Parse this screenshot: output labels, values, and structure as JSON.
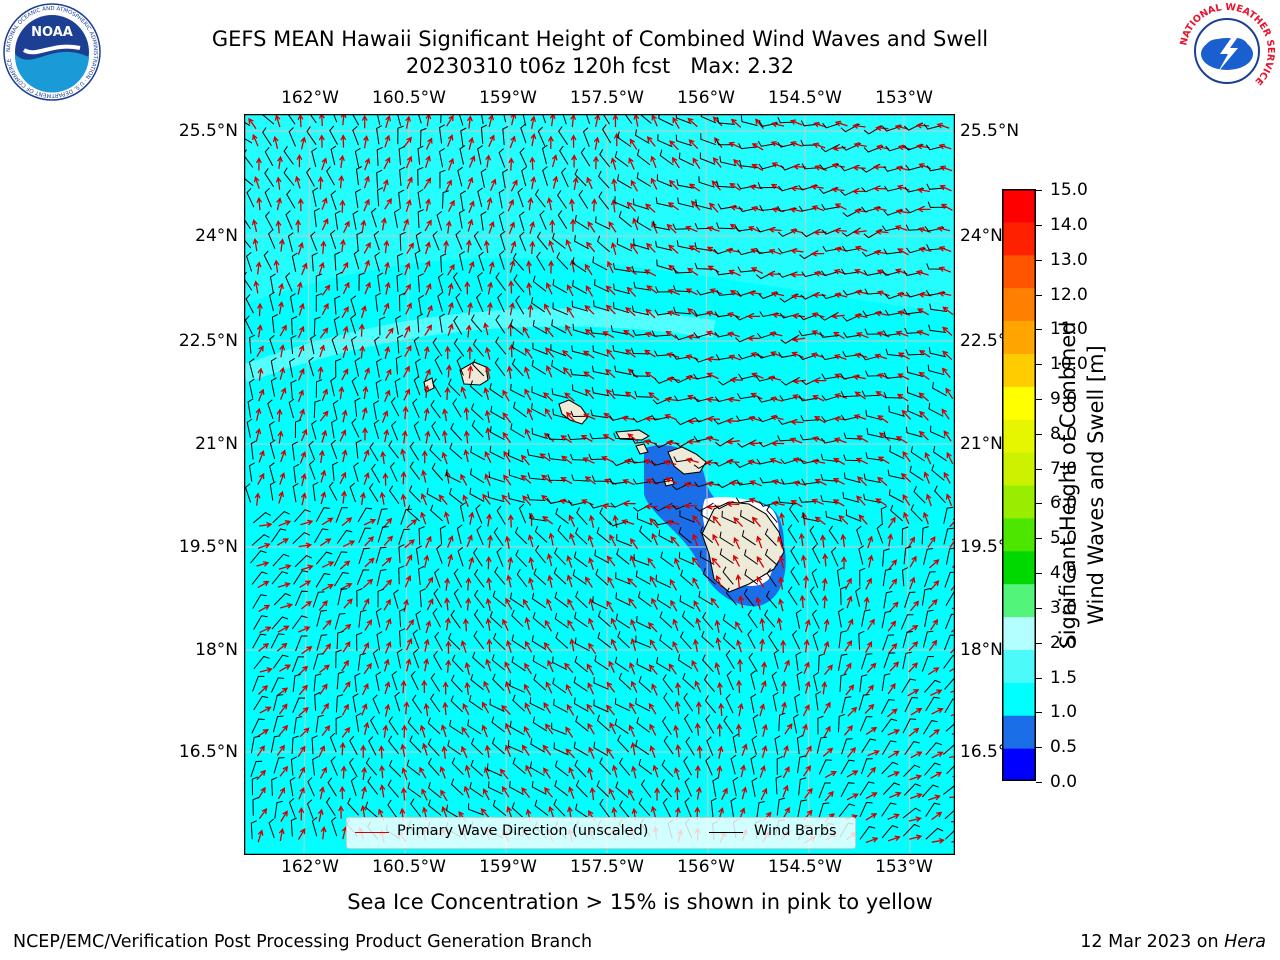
{
  "title": {
    "line1": "GEFS MEAN Hawaii Significant Height of Combined Wind Waves and Swell",
    "line2": "20230310 t06z 120h fcst   Max: 2.32"
  },
  "logos": {
    "noaa": {
      "text": "NOAA",
      "ring_text": "NATIONAL OCEANIC AND ATMOSPHERIC ADMINISTRATION · U.S. DEPARTMENT OF COMMERCE"
    },
    "nws": {
      "ring_text": "NATIONAL WEATHER SERVICE"
    }
  },
  "map": {
    "lon_labels": [
      "162°W",
      "160.5°W",
      "159°W",
      "157.5°W",
      "156°W",
      "154.5°W",
      "153°W"
    ],
    "lat_labels_left": [
      "25.5°N",
      "24°N",
      "22.5°N",
      "21°N",
      "19.5°N",
      "18°N",
      "16.5°N"
    ],
    "lat_labels_right": [
      "25.5°N",
      "24°N",
      "22.5°N",
      "21°N",
      "19.5°N",
      "18°N",
      "16.5°N"
    ],
    "ocean_color": "#00ffff",
    "land_color": "#eeead8",
    "wave_arrow_color": "#d40000",
    "barb_color": "#000000"
  },
  "legend": {
    "items": [
      {
        "label": "Primary Wave Direction (unscaled)",
        "color": "#d40000"
      },
      {
        "label": "Wind Barbs",
        "color": "#000000"
      }
    ]
  },
  "colorbar": {
    "label_line1": "Significant Height of Combined",
    "label_line2": "Wind Waves and Swell [m]",
    "ticks": [
      "15.0",
      "14.0",
      "13.0",
      "12.0",
      "11.0",
      "10.0",
      "9.0",
      "8.0",
      "7.0",
      "6.0",
      "5.0",
      "4.0",
      "3.0",
      "2.0",
      "1.5",
      "1.0",
      "0.5",
      "0.0"
    ],
    "colors": [
      "#0000ff",
      "#1a6fe8",
      "#00ffff",
      "#4dfafa",
      "#b3ffff",
      "#52f57a",
      "#00d900",
      "#4de600",
      "#99ee00",
      "#ccf200",
      "#e6f500",
      "#ffff00",
      "#ffcc00",
      "#ffa500",
      "#ff8000",
      "#ff5500",
      "#ff2000",
      "#ff0000"
    ]
  },
  "sea_ice_note": "Sea Ice Concentration > 15% is shown in pink to yellow",
  "footer": {
    "left": "NCEP/EMC/Verification Post Processing Product Generation Branch",
    "right_prefix": "12 Mar 2023 on ",
    "right_host": "Hera"
  }
}
